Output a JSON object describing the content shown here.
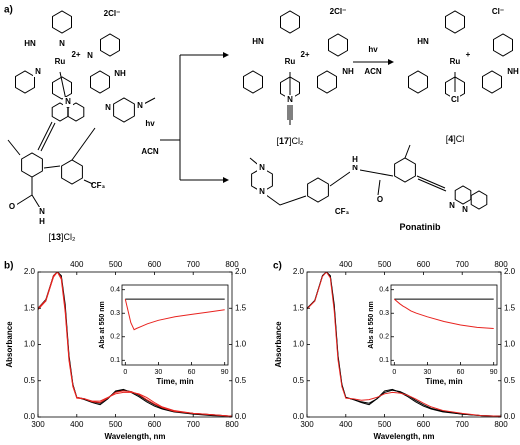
{
  "scheme": {
    "label": "a)",
    "compounds": [
      {
        "counterion": "2Cl⁻",
        "atoms": [
          "HN",
          "Ru",
          "2+",
          "NH",
          "N",
          "N",
          "N",
          "N",
          "O",
          "N",
          "H",
          "CF₃",
          "N",
          "N"
        ],
        "name": [
          "[",
          "13",
          "]Cl₂"
        ]
      },
      {
        "counterion": "2Cl⁻",
        "atoms": [
          "HN",
          "Ru",
          "2+",
          "NH",
          "N"
        ],
        "name": [
          "[",
          "17",
          "]Cl₂"
        ]
      },
      {
        "counterion": "Cl⁻",
        "atoms": [
          "HN",
          "Ru",
          "+",
          "NH",
          "Cl"
        ],
        "name": [
          "[",
          "4",
          "]Cl"
        ]
      },
      {
        "atoms": [
          "N",
          "N",
          "N",
          "H",
          "O",
          "CF₃",
          "N",
          "N"
        ],
        "name": [
          "Ponatinib"
        ]
      }
    ],
    "arrows": [
      {
        "top": "hv",
        "bottom": "ACN"
      },
      {
        "top": "hv",
        "bottom": "ACN"
      }
    ]
  },
  "chart_data": [
    {
      "type": "line",
      "label": "b)",
      "xlabel": "Wavelength, nm",
      "ylabel": "Absorbance",
      "xlim": [
        300,
        800
      ],
      "xticks": [
        300,
        400,
        500,
        600,
        700,
        800
      ],
      "x2ticks": [
        400,
        500,
        600,
        700,
        800
      ],
      "ylim": [
        0,
        2
      ],
      "yticks": [
        {
          "value": 0,
          "label": "0.0"
        },
        0.5,
        {
          "value": 1,
          "label": "1.0"
        },
        1.5,
        {
          "value": 2,
          "label": "2.0"
        }
      ],
      "y2lim": [
        0,
        2
      ],
      "y2ticks": [
        {
          "value": 0,
          "label": "0.0"
        },
        0.5,
        {
          "value": 1,
          "label": "1.0"
        },
        1.5,
        {
          "value": 2,
          "label": "2.0"
        }
      ],
      "x": [
        300,
        320,
        340,
        350,
        360,
        370,
        380,
        390,
        400,
        420,
        440,
        460,
        480,
        500,
        520,
        540,
        560,
        580,
        600,
        620,
        650,
        700,
        750,
        800
      ],
      "series": [
        {
          "color": "#000000",
          "values": [
            1.5,
            1.6,
            1.95,
            2.0,
            1.95,
            1.55,
            0.85,
            0.45,
            0.27,
            0.24,
            0.2,
            0.17,
            0.25,
            0.36,
            0.38,
            0.34,
            0.28,
            0.21,
            0.15,
            0.11,
            0.07,
            0.04,
            0.02,
            0.01
          ]
        },
        {
          "color": "#000000",
          "values": [
            1.5,
            1.62,
            1.95,
            2.0,
            1.93,
            1.5,
            0.82,
            0.44,
            0.27,
            0.25,
            0.21,
            0.19,
            0.26,
            0.35,
            0.37,
            0.35,
            0.3,
            0.23,
            0.17,
            0.12,
            0.08,
            0.05,
            0.03,
            0.01
          ]
        },
        {
          "color": "#e8231f",
          "values": [
            1.48,
            1.6,
            1.93,
            2.0,
            1.9,
            1.45,
            0.78,
            0.42,
            0.26,
            0.25,
            0.22,
            0.22,
            0.27,
            0.32,
            0.34,
            0.34,
            0.32,
            0.27,
            0.2,
            0.14,
            0.09,
            0.05,
            0.03,
            0.01
          ]
        },
        {
          "color": "#e8231f",
          "values": [
            1.5,
            1.61,
            1.95,
            2.0,
            1.92,
            1.48,
            0.8,
            0.43,
            0.27,
            0.25,
            0.21,
            0.2,
            0.26,
            0.34,
            0.36,
            0.35,
            0.31,
            0.24,
            0.18,
            0.13,
            0.08,
            0.05,
            0.03,
            0.01
          ]
        }
      ],
      "inset": {
        "xlabel": "Time, min",
        "ylabel": "Abs at 550 nm",
        "xlim": [
          -3,
          93
        ],
        "xticks": [
          0,
          30,
          60,
          90
        ],
        "ylim": [
          0.08,
          0.42
        ],
        "yticks": [
          0.1,
          0.2,
          0.3,
          0.4
        ],
        "x": [
          0,
          5,
          8,
          10,
          15,
          20,
          30,
          45,
          60,
          75,
          90
        ],
        "series": [
          {
            "color": "#000000",
            "values": [
              0.36,
              0.36,
              0.36,
              0.36,
              0.36,
              0.36,
              0.36,
              0.36,
              0.36,
              0.36,
              0.36
            ]
          },
          {
            "color": "#e8231f",
            "values": [
              0.36,
              0.26,
              0.23,
              0.235,
              0.245,
              0.255,
              0.27,
              0.285,
              0.295,
              0.305,
              0.315
            ]
          }
        ]
      }
    },
    {
      "type": "line",
      "label": "c)",
      "xlabel": "Wavelength, nm",
      "ylabel": "Absorbance",
      "xlim": [
        300,
        800
      ],
      "xticks": [
        300,
        400,
        500,
        600,
        700,
        800
      ],
      "x2ticks": [
        400,
        500,
        600,
        700,
        800
      ],
      "ylim": [
        0,
        2
      ],
      "yticks": [
        {
          "value": 0,
          "label": "0.0"
        },
        0.5,
        {
          "value": 1,
          "label": "1.0"
        },
        1.5,
        {
          "value": 2,
          "label": "2.0"
        }
      ],
      "y2lim": [
        0,
        2
      ],
      "y2ticks": [
        {
          "value": 0,
          "label": "0.0"
        },
        0.5,
        {
          "value": 1,
          "label": "1.0"
        },
        1.5,
        {
          "value": 2,
          "label": "2.0"
        }
      ],
      "x": [
        300,
        320,
        340,
        350,
        360,
        370,
        380,
        390,
        400,
        420,
        440,
        460,
        480,
        500,
        520,
        540,
        560,
        580,
        600,
        620,
        650,
        700,
        750,
        800
      ],
      "series": [
        {
          "color": "#000000",
          "values": [
            1.5,
            1.6,
            1.95,
            2.0,
            1.95,
            1.55,
            0.85,
            0.45,
            0.27,
            0.24,
            0.2,
            0.17,
            0.25,
            0.36,
            0.38,
            0.34,
            0.28,
            0.21,
            0.15,
            0.11,
            0.07,
            0.04,
            0.02,
            0.01
          ]
        },
        {
          "color": "#000000",
          "values": [
            1.5,
            1.61,
            1.95,
            2.0,
            1.94,
            1.52,
            0.83,
            0.44,
            0.27,
            0.24,
            0.21,
            0.19,
            0.25,
            0.34,
            0.37,
            0.35,
            0.3,
            0.23,
            0.17,
            0.12,
            0.08,
            0.04,
            0.02,
            0.01
          ]
        },
        {
          "color": "#e8231f",
          "values": [
            1.49,
            1.6,
            1.94,
            2.0,
            1.92,
            1.47,
            0.79,
            0.42,
            0.26,
            0.25,
            0.23,
            0.24,
            0.27,
            0.32,
            0.34,
            0.33,
            0.3,
            0.25,
            0.19,
            0.14,
            0.09,
            0.05,
            0.02,
            0.01
          ]
        }
      ],
      "inset": {
        "xlabel": "Time, min",
        "ylabel": "Abs at 550 nm",
        "xlim": [
          -3,
          93
        ],
        "xticks": [
          0,
          30,
          60,
          90
        ],
        "ylim": [
          0.08,
          0.42
        ],
        "yticks": [
          0.1,
          0.2,
          0.3,
          0.4
        ],
        "x": [
          0,
          5,
          8,
          10,
          15,
          20,
          30,
          45,
          60,
          75,
          90
        ],
        "series": [
          {
            "color": "#000000",
            "values": [
              0.36,
              0.36,
              0.36,
              0.36,
              0.36,
              0.36,
              0.36,
              0.36,
              0.36,
              0.36,
              0.36
            ]
          },
          {
            "color": "#e8231f",
            "values": [
              0.36,
              0.34,
              0.33,
              0.325,
              0.31,
              0.3,
              0.285,
              0.265,
              0.25,
              0.24,
              0.235
            ]
          }
        ]
      }
    }
  ]
}
